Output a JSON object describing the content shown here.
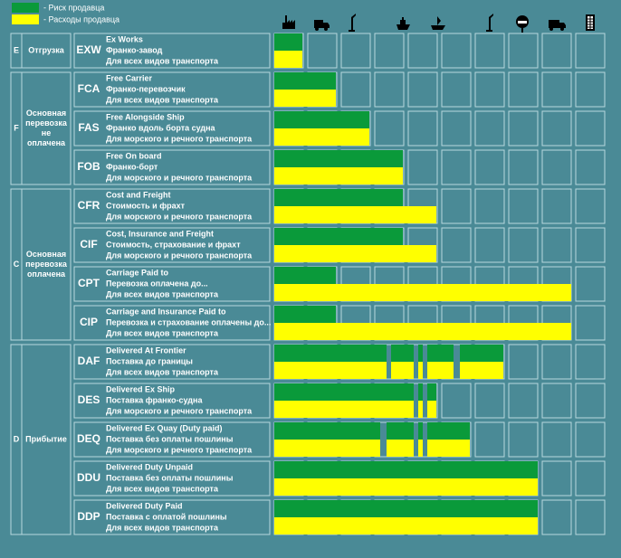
{
  "legend": {
    "risk": "- Риск продавца",
    "cost": "- Расходы продавца"
  },
  "groups": [
    {
      "letter": "E",
      "name": [
        "Отгрузка"
      ]
    },
    {
      "letter": "F",
      "name": [
        "Основная",
        "перевозка",
        "не",
        "оплачена"
      ]
    },
    {
      "letter": "C",
      "name": [
        "Основная",
        "перевозка",
        "оплачена"
      ]
    },
    {
      "letter": "D",
      "name": [
        "Прибытие"
      ]
    }
  ],
  "rows": [
    {
      "code": "EXW",
      "lines": [
        "Ex Works",
        "Франко-завод",
        "Для всех видов транспорта"
      ]
    },
    {
      "code": "FCA",
      "lines": [
        "Free Carrier",
        "Франко-перевозчик",
        "Для всех видов транспорта"
      ]
    },
    {
      "code": "FAS",
      "lines": [
        "Free Alongside Ship",
        "Франко вдоль борта судна",
        "Для морского и речного транспорта"
      ]
    },
    {
      "code": "FOB",
      "lines": [
        "Free On board",
        "Франко-борт",
        "Для морского и речного транспорта"
      ]
    },
    {
      "code": "CFR",
      "lines": [
        "Cost and Freight",
        "Стоимость и фрахт",
        "Для морского и речного транспорта"
      ]
    },
    {
      "code": "CIF",
      "lines": [
        "Cost, Insurance and Freight",
        "Стоимость, страхование и фрахт",
        "Для морского и речного транспорта"
      ]
    },
    {
      "code": "CPT",
      "lines": [
        "Carriage Paid to",
        "Перевозка оплачена до...",
        "Для всех видов транспорта"
      ]
    },
    {
      "code": "CIP",
      "lines": [
        "Carriage and Insurance Paid to",
        "Перевозка и страхование оплачены до...",
        "Для всех видов транспорта"
      ]
    },
    {
      "code": "DAF",
      "lines": [
        "Delivered At Frontier",
        "Поставка до границы",
        "Для всех видов транспорта"
      ]
    },
    {
      "code": "DES",
      "lines": [
        "Delivered Ex Ship",
        "Поставка франко-судна",
        "Для морского и речного транспорта"
      ]
    },
    {
      "code": "DEQ",
      "lines": [
        "Delivered Ex Quay (Duty paid)",
        "Поставка без оплаты пошлины",
        "Для морского и речного транспорта"
      ]
    },
    {
      "code": "DDU",
      "lines": [
        "Delivered Duty Unpaid",
        "Поставка без оплаты пошлины",
        "Для всех видов транспорта"
      ]
    },
    {
      "code": "DDP",
      "lines": [
        "Delivered Duty Paid",
        "Поставка с оплатой пошлины",
        "Для всех видов транспорта"
      ]
    }
  ]
}
